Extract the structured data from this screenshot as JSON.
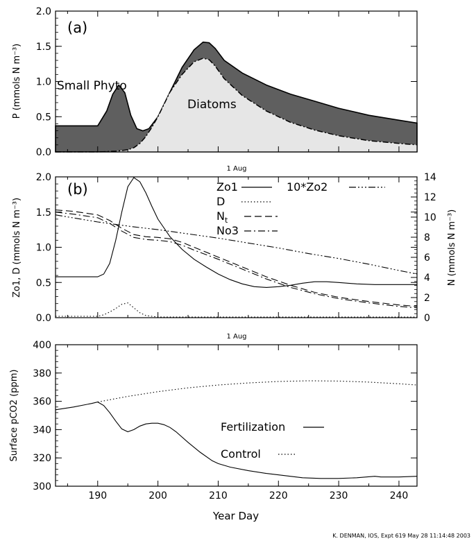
{
  "footer": "K. DENMAN, IOS, Expt  619  May 28 11:14:48 2003",
  "chart_data": [
    {
      "panel": "a",
      "type": "area",
      "panel_label": "(a)",
      "ylabel": "P (mmols N m⁻³)",
      "xlim": [
        183,
        243
      ],
      "ylim": [
        0,
        2.0
      ],
      "yticks": [
        "0.0",
        "0.5",
        "1.0",
        "1.5",
        "2.0"
      ],
      "series": [
        {
          "name": "Small Phyto",
          "color": "#5f5f5f",
          "x": [
            183,
            190,
            191.5,
            192.5,
            193.5,
            194.5,
            195.5,
            196.5,
            197.5,
            198.5,
            200,
            202,
            204,
            206,
            207.5,
            208.5,
            209.5,
            211,
            214,
            218,
            222,
            226,
            230,
            235,
            240,
            243
          ],
          "values": [
            0.37,
            0.37,
            0.58,
            0.82,
            0.95,
            0.84,
            0.52,
            0.33,
            0.3,
            0.33,
            0.5,
            0.85,
            1.2,
            1.45,
            1.56,
            1.55,
            1.47,
            1.3,
            1.12,
            0.95,
            0.82,
            0.72,
            0.62,
            0.52,
            0.45,
            0.41
          ]
        },
        {
          "name": "Diatoms",
          "color": "#e6e6e6",
          "x": [
            183,
            190,
            193,
            195,
            196,
            197,
            198,
            199,
            200,
            202,
            204,
            206,
            207.5,
            208.5,
            209.5,
            211,
            214,
            218,
            222,
            226,
            230,
            235,
            240,
            243
          ],
          "values": [
            0.0,
            0.0,
            0.01,
            0.03,
            0.06,
            0.12,
            0.22,
            0.35,
            0.5,
            0.85,
            1.1,
            1.28,
            1.33,
            1.31,
            1.22,
            1.04,
            0.8,
            0.58,
            0.42,
            0.31,
            0.23,
            0.16,
            0.12,
            0.1
          ]
        }
      ]
    },
    {
      "panel": "b",
      "type": "line",
      "panel_label": "(b)",
      "top_label": "1 Aug",
      "ylabel": "Zo1, D (mmols N m⁻³)",
      "ylabel_right": "N (mmols N m⁻³)",
      "xlim": [
        183,
        243
      ],
      "ylim": [
        0,
        2.0
      ],
      "ylim_right": [
        0,
        14
      ],
      "yticks": [
        "0.0",
        "0.5",
        "1.0",
        "1.5",
        "2.0"
      ],
      "yticks_right": [
        "0",
        "2",
        "4",
        "6",
        "8",
        "10",
        "12",
        "14"
      ],
      "series": [
        {
          "name": "Zo1",
          "dash": "none",
          "x": [
            183,
            190,
            191,
            192,
            193,
            194,
            195,
            196,
            197,
            198,
            199,
            200,
            202,
            204,
            206,
            208,
            210,
            212,
            214,
            216,
            218,
            220,
            222,
            224,
            226,
            228,
            230,
            233,
            236,
            240,
            243
          ],
          "values": [
            0.58,
            0.58,
            0.62,
            0.77,
            1.1,
            1.5,
            1.86,
            1.99,
            1.93,
            1.77,
            1.58,
            1.4,
            1.15,
            0.97,
            0.83,
            0.72,
            0.62,
            0.54,
            0.48,
            0.44,
            0.43,
            0.44,
            0.46,
            0.49,
            0.51,
            0.51,
            0.5,
            0.48,
            0.47,
            0.47,
            0.47
          ]
        },
        {
          "name": "D",
          "dash": "1.5,3",
          "x": [
            183,
            190,
            191,
            192,
            193,
            194,
            195,
            196,
            197,
            198,
            199,
            200,
            243
          ],
          "values": [
            0.02,
            0.02,
            0.04,
            0.08,
            0.13,
            0.19,
            0.21,
            0.14,
            0.07,
            0.03,
            0.02,
            0.01,
            0.01
          ]
        },
        {
          "name": "Nt",
          "dash": "10,5",
          "x": [
            183,
            186,
            190,
            192,
            194,
            196,
            198,
            200,
            202,
            204,
            206,
            210,
            214,
            218,
            222,
            226,
            230,
            235,
            240,
            243
          ],
          "values": [
            1.53,
            1.51,
            1.46,
            1.38,
            1.27,
            1.18,
            1.15,
            1.14,
            1.12,
            1.07,
            1.0,
            0.86,
            0.72,
            0.58,
            0.46,
            0.36,
            0.29,
            0.23,
            0.18,
            0.16
          ]
        },
        {
          "name": "No3",
          "dash": "10,4,2,4",
          "x": [
            183,
            186,
            190,
            192,
            194,
            196,
            198,
            200,
            202,
            204,
            206,
            210,
            214,
            218,
            222,
            226,
            230,
            235,
            240,
            243
          ],
          "values": [
            1.5,
            1.47,
            1.42,
            1.34,
            1.23,
            1.14,
            1.11,
            1.1,
            1.08,
            1.03,
            0.96,
            0.83,
            0.69,
            0.55,
            0.43,
            0.34,
            0.27,
            0.21,
            0.16,
            0.14
          ]
        },
        {
          "name": "10*Zo2",
          "dash": "10,3,2,3,2,3,2,3",
          "x": [
            183,
            190,
            196,
            200,
            205,
            210,
            215,
            220,
            225,
            230,
            235,
            240,
            243
          ],
          "values": [
            1.46,
            1.36,
            1.29,
            1.25,
            1.19,
            1.13,
            1.06,
            0.99,
            0.91,
            0.84,
            0.76,
            0.67,
            0.62
          ]
        }
      ],
      "legend": [
        {
          "name": "Zo1",
          "dash": "none"
        },
        {
          "name": "D",
          "dash": "1.5,3"
        },
        {
          "name": "N",
          "sub": "t",
          "dash": "10,5"
        },
        {
          "name": "No3",
          "dash": "10,4,2,4"
        },
        {
          "name": "10*Zo2",
          "dash": "10,3,2,3,2,3,2,3"
        }
      ],
      "annotations": []
    },
    {
      "panel": "c",
      "type": "line",
      "top_label": "1 Aug",
      "ylabel": "Surface pCO2 (ppm)",
      "xlabel": "Year Day",
      "xlim": [
        183,
        243
      ],
      "ylim": [
        300,
        400
      ],
      "yticks": [
        "300",
        "320",
        "340",
        "360",
        "380",
        "400"
      ],
      "xticks": [
        "190",
        "200",
        "210",
        "220",
        "230",
        "240"
      ],
      "series": [
        {
          "name": "Fertilization",
          "dash": "none",
          "x": [
            183,
            186,
            189,
            190,
            191,
            192,
            193,
            194,
            195,
            196,
            197,
            198,
            199,
            200,
            201,
            202,
            203,
            205,
            207,
            209,
            210,
            212,
            215,
            218,
            221,
            224,
            227,
            230,
            233,
            236,
            237,
            240,
            243
          ],
          "values": [
            354,
            356,
            358.5,
            359.5,
            357,
            352,
            346,
            340.5,
            338.5,
            340,
            342.5,
            344,
            344.5,
            344.5,
            343.5,
            341.5,
            338.5,
            331,
            324,
            318,
            316,
            313.5,
            311,
            309,
            307.5,
            306,
            305.5,
            305.5,
            306,
            307,
            306.5,
            306.5,
            307
          ]
        },
        {
          "name": "Control",
          "dash": "1.5,3",
          "x": [
            190,
            195,
            200,
            205,
            210,
            215,
            220,
            225,
            230,
            235,
            240,
            243
          ],
          "values": [
            359.5,
            363.5,
            366.8,
            369.5,
            371.5,
            373,
            374,
            374.5,
            374.3,
            373.6,
            372.4,
            371.5
          ]
        }
      ],
      "legend": [
        {
          "name": "Fertilization",
          "dash": "none"
        },
        {
          "name": "Control",
          "dash": "1.5,3"
        }
      ]
    }
  ]
}
